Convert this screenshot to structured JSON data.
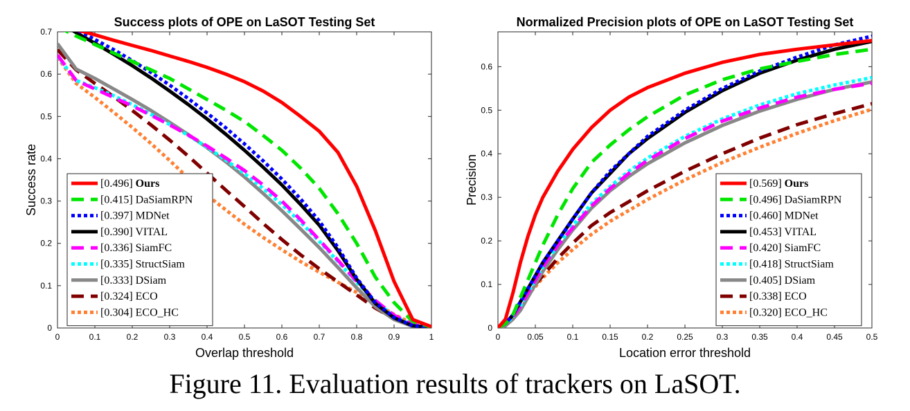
{
  "caption": "Figure 11. Evaluation results of trackers on LaSOT.",
  "chart_data": [
    {
      "type": "line",
      "title": "Success plots of OPE on LaSOT Testing Set",
      "xlabel": "Overlap threshold",
      "ylabel": "Success rate",
      "xlim": [
        0,
        1
      ],
      "ylim": [
        0,
        0.7
      ],
      "xticks": [
        "0",
        "0.1",
        "0.2",
        "0.3",
        "0.4",
        "0.5",
        "0.6",
        "0.7",
        "0.8",
        "0.9",
        "1"
      ],
      "yticks": [
        "0",
        "0.1",
        "0.2",
        "0.3",
        "0.4",
        "0.5",
        "0.6",
        "0.7"
      ],
      "legend_placement": "bottom-left",
      "x": [
        0,
        0.05,
        0.1,
        0.15,
        0.2,
        0.25,
        0.3,
        0.35,
        0.4,
        0.45,
        0.5,
        0.55,
        0.6,
        0.65,
        0.7,
        0.75,
        0.8,
        0.85,
        0.9,
        0.95,
        1.0
      ],
      "series": [
        {
          "score": "[0.496]",
          "name": "Ours",
          "bold": true,
          "color": "#ff0000",
          "style": "solid",
          "values": [
            0.72,
            0.705,
            0.693,
            0.68,
            0.668,
            0.656,
            0.643,
            0.63,
            0.616,
            0.6,
            0.582,
            0.56,
            0.533,
            0.5,
            0.465,
            0.415,
            0.335,
            0.23,
            0.11,
            0.02,
            0.003
          ]
        },
        {
          "score": "[0.415]",
          "name": "DaSiamRPN",
          "bold": false,
          "color": "#00e600",
          "style": "dash",
          "values": [
            0.712,
            0.69,
            0.67,
            0.65,
            0.63,
            0.61,
            0.59,
            0.565,
            0.54,
            0.515,
            0.488,
            0.455,
            0.42,
            0.378,
            0.33,
            0.27,
            0.2,
            0.12,
            0.06,
            0.015,
            0.002
          ]
        },
        {
          "score": "[0.397]",
          "name": "MDNet",
          "bold": false,
          "color": "#0000ff",
          "style": "dot",
          "values": [
            0.733,
            0.705,
            0.682,
            0.658,
            0.632,
            0.604,
            0.574,
            0.542,
            0.508,
            0.473,
            0.435,
            0.395,
            0.352,
            0.305,
            0.253,
            0.19,
            0.118,
            0.06,
            0.025,
            0.005,
            0.001
          ]
        },
        {
          "score": "[0.390]",
          "name": "VITAL",
          "bold": false,
          "color": "#000000",
          "style": "solid",
          "values": [
            0.726,
            0.698,
            0.673,
            0.647,
            0.62,
            0.591,
            0.56,
            0.528,
            0.494,
            0.458,
            0.42,
            0.38,
            0.338,
            0.292,
            0.243,
            0.183,
            0.115,
            0.058,
            0.024,
            0.005,
            0.001
          ]
        },
        {
          "score": "[0.336]",
          "name": "SiamFC",
          "bold": false,
          "color": "#ff00ff",
          "style": "dash",
          "values": [
            0.645,
            0.585,
            0.565,
            0.545,
            0.525,
            0.503,
            0.48,
            0.456,
            0.43,
            0.402,
            0.372,
            0.338,
            0.3,
            0.256,
            0.208,
            0.16,
            0.11,
            0.065,
            0.03,
            0.008,
            0.001
          ]
        },
        {
          "score": "[0.335]",
          "name": "StructSiam",
          "bold": false,
          "color": "#00ffff",
          "style": "dot",
          "values": [
            0.642,
            0.585,
            0.568,
            0.549,
            0.528,
            0.505,
            0.481,
            0.455,
            0.427,
            0.397,
            0.365,
            0.33,
            0.292,
            0.25,
            0.205,
            0.157,
            0.108,
            0.063,
            0.028,
            0.006,
            0.001
          ]
        },
        {
          "score": "[0.333]",
          "name": "DSiam",
          "bold": false,
          "color": "#888888",
          "style": "solid",
          "values": [
            0.672,
            0.612,
            0.59,
            0.565,
            0.54,
            0.514,
            0.486,
            0.457,
            0.426,
            0.393,
            0.357,
            0.318,
            0.277,
            0.234,
            0.19,
            0.143,
            0.095,
            0.05,
            0.02,
            0.004,
            0.001
          ]
        },
        {
          "score": "[0.324]",
          "name": "ECO",
          "bold": false,
          "color": "#800000",
          "style": "dash",
          "values": [
            0.658,
            0.61,
            0.578,
            0.547,
            0.514,
            0.48,
            0.444,
            0.406,
            0.366,
            0.326,
            0.287,
            0.247,
            0.209,
            0.173,
            0.14,
            0.109,
            0.078,
            0.047,
            0.022,
            0.006,
            0.001
          ]
        },
        {
          "score": "[0.304]",
          "name": "ECO_HC",
          "bold": false,
          "color": "#ff8033",
          "style": "dot",
          "values": [
            0.64,
            0.578,
            0.545,
            0.51,
            0.474,
            0.436,
            0.396,
            0.354,
            0.314,
            0.279,
            0.245,
            0.214,
            0.185,
            0.157,
            0.132,
            0.108,
            0.084,
            0.058,
            0.032,
            0.01,
            0.001
          ]
        }
      ]
    },
    {
      "type": "line",
      "title": "Normalized Precision plots of OPE on LaSOT Testing Set",
      "xlabel": "Location error threshold",
      "ylabel": "Precision",
      "xlim": [
        0,
        0.5
      ],
      "ylim": [
        0,
        0.68
      ],
      "xticks": [
        "0",
        "0.05",
        "0.1",
        "0.15",
        "0.2",
        "0.25",
        "0.3",
        "0.35",
        "0.4",
        "0.45",
        "0.5"
      ],
      "yticks": [
        "0",
        "0.1",
        "0.2",
        "0.3",
        "0.4",
        "0.5",
        "0.6"
      ],
      "legend_placement": "bottom-right",
      "x": [
        0,
        0.01,
        0.02,
        0.03,
        0.04,
        0.05,
        0.06,
        0.08,
        0.1,
        0.125,
        0.15,
        0.175,
        0.2,
        0.25,
        0.3,
        0.35,
        0.4,
        0.45,
        0.5
      ],
      "series": [
        {
          "score": "[0.569]",
          "name": "Ours",
          "bold": true,
          "color": "#ff0000",
          "style": "solid",
          "values": [
            0,
            0.02,
            0.08,
            0.15,
            0.21,
            0.26,
            0.3,
            0.36,
            0.41,
            0.46,
            0.5,
            0.53,
            0.552,
            0.585,
            0.61,
            0.628,
            0.64,
            0.65,
            0.66
          ]
        },
        {
          "score": "[0.496]",
          "name": "DaSiamRPN",
          "bold": false,
          "color": "#00e600",
          "style": "dash",
          "values": [
            0,
            0.01,
            0.03,
            0.07,
            0.11,
            0.15,
            0.19,
            0.26,
            0.32,
            0.38,
            0.42,
            0.455,
            0.485,
            0.535,
            0.57,
            0.595,
            0.612,
            0.628,
            0.64
          ]
        },
        {
          "score": "[0.460]",
          "name": "MDNet",
          "bold": false,
          "color": "#0000ff",
          "style": "dot",
          "values": [
            0,
            0.01,
            0.03,
            0.06,
            0.09,
            0.12,
            0.15,
            0.2,
            0.25,
            0.31,
            0.36,
            0.4,
            0.44,
            0.5,
            0.55,
            0.59,
            0.622,
            0.65,
            0.67
          ]
        },
        {
          "score": "[0.453]",
          "name": "VITAL",
          "bold": false,
          "color": "#000000",
          "style": "solid",
          "values": [
            0,
            0.01,
            0.03,
            0.06,
            0.09,
            0.12,
            0.15,
            0.2,
            0.25,
            0.31,
            0.355,
            0.4,
            0.435,
            0.495,
            0.545,
            0.585,
            0.615,
            0.64,
            0.658
          ]
        },
        {
          "score": "[0.420]",
          "name": "SiamFC",
          "bold": false,
          "color": "#ff00ff",
          "style": "dash",
          "values": [
            0,
            0.01,
            0.025,
            0.05,
            0.08,
            0.11,
            0.14,
            0.19,
            0.23,
            0.28,
            0.32,
            0.355,
            0.385,
            0.435,
            0.475,
            0.505,
            0.53,
            0.548,
            0.562
          ]
        },
        {
          "score": "[0.418]",
          "name": "StructSiam",
          "bold": false,
          "color": "#00ffff",
          "style": "dot",
          "values": [
            0,
            0.01,
            0.025,
            0.05,
            0.08,
            0.11,
            0.14,
            0.19,
            0.235,
            0.285,
            0.325,
            0.36,
            0.39,
            0.44,
            0.48,
            0.512,
            0.538,
            0.558,
            0.575
          ]
        },
        {
          "score": "[0.405]",
          "name": "DSiam",
          "bold": false,
          "color": "#888888",
          "style": "solid",
          "values": [
            0,
            0.005,
            0.02,
            0.04,
            0.07,
            0.1,
            0.13,
            0.18,
            0.225,
            0.275,
            0.315,
            0.348,
            0.377,
            0.425,
            0.465,
            0.498,
            0.525,
            0.548,
            0.565
          ]
        },
        {
          "score": "[0.338]",
          "name": "ECO",
          "bold": false,
          "color": "#800000",
          "style": "dash",
          "values": [
            0,
            0.01,
            0.025,
            0.05,
            0.08,
            0.1,
            0.12,
            0.16,
            0.195,
            0.235,
            0.265,
            0.29,
            0.315,
            0.36,
            0.4,
            0.436,
            0.467,
            0.492,
            0.515
          ]
        },
        {
          "score": "[0.320]",
          "name": "ECO_HC",
          "bold": false,
          "color": "#ff8033",
          "style": "dot",
          "values": [
            0,
            0.01,
            0.025,
            0.05,
            0.075,
            0.095,
            0.115,
            0.15,
            0.18,
            0.215,
            0.245,
            0.27,
            0.295,
            0.34,
            0.38,
            0.415,
            0.447,
            0.476,
            0.502
          ]
        }
      ]
    }
  ]
}
